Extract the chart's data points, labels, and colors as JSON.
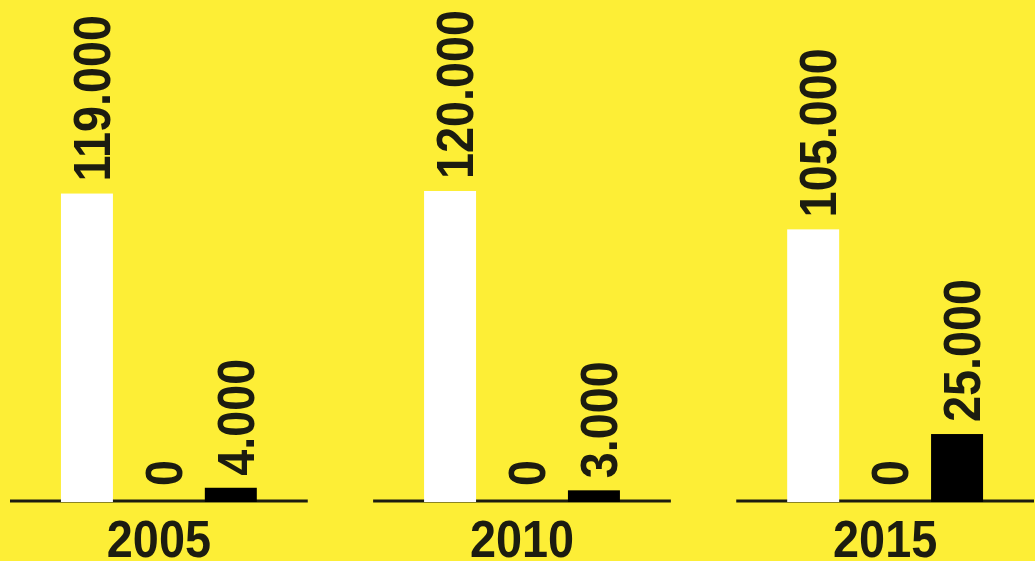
{
  "chart_data": {
    "type": "bar",
    "categories": [
      "2005",
      "2010",
      "2015"
    ],
    "series": [
      {
        "color": "#ffffff",
        "values": [
          119000,
          120000,
          105000
        ],
        "value_labels": [
          "119.000",
          "120.000",
          "105.000"
        ]
      },
      {
        "color": "#e42233",
        "values": [
          0,
          0,
          0
        ],
        "value_labels": [
          "0",
          "0",
          "0"
        ]
      },
      {
        "color": "#000000",
        "values": [
          4000,
          3000,
          25000
        ],
        "value_labels": [
          "4.000",
          "3.000",
          "25.000"
        ]
      }
    ]
  }
}
